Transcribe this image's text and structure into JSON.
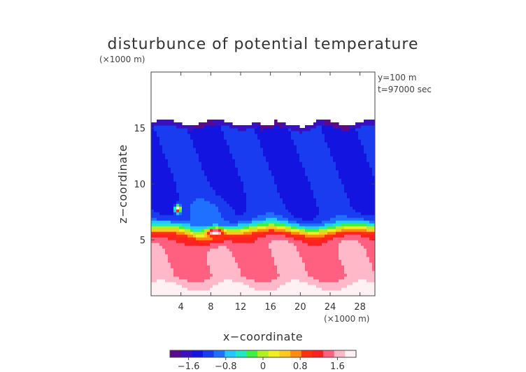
{
  "chart_data": {
    "type": "heatmap",
    "title": "disturbunce of potential temperature",
    "z_unit": "(×1000 m)",
    "x_unit": "(×1000 m)",
    "xlabel": "x−coordinate",
    "ylabel": "z−coordinate",
    "annotations": [
      "y=100 m",
      "t=97000 sec"
    ],
    "x_range": [
      0,
      30
    ],
    "z_range": [
      0,
      20
    ],
    "x_ticks": [
      {
        "v": 4,
        "label": "4"
      },
      {
        "v": 8,
        "label": "8"
      },
      {
        "v": 12,
        "label": "12"
      },
      {
        "v": 16,
        "label": "16"
      },
      {
        "v": 20,
        "label": "20"
      },
      {
        "v": 24,
        "label": "24"
      },
      {
        "v": 28,
        "label": "28"
      }
    ],
    "z_ticks": [
      {
        "v": 5,
        "label": "5"
      },
      {
        "v": 10,
        "label": "10"
      },
      {
        "v": 15,
        "label": "15"
      }
    ],
    "field_description": {
      "top_of_field_km": 15.5,
      "transition_height_km": 6.0,
      "upper_value": -1.3,
      "lower_value": 1.5,
      "hotspot": {
        "x_km": 8.6,
        "z_km": 5.7,
        "value": 2.0
      },
      "cold_spot": {
        "x_km": 3.6,
        "z_km": 7.8,
        "value": 2.0
      }
    },
    "colorbar": {
      "min": -2.0,
      "max": 2.0,
      "ticks": [
        {
          "v": -1.6,
          "label": "−1.6"
        },
        {
          "v": -0.8,
          "label": "−0.8"
        },
        {
          "v": 0,
          "label": "0"
        },
        {
          "v": 0.8,
          "label": "0.8"
        },
        {
          "v": 1.6,
          "label": "1.6"
        }
      ],
      "colors": [
        "#5a0a8a",
        "#3a10c0",
        "#1414e0",
        "#1a3cf0",
        "#2070ff",
        "#20c8ff",
        "#20e8c0",
        "#40f040",
        "#b0f020",
        "#f0f020",
        "#ffc820",
        "#ff8c10",
        "#ff3010",
        "#ff2020",
        "#ff6080",
        "#ffb8c8",
        "#fff0f4"
      ]
    }
  }
}
